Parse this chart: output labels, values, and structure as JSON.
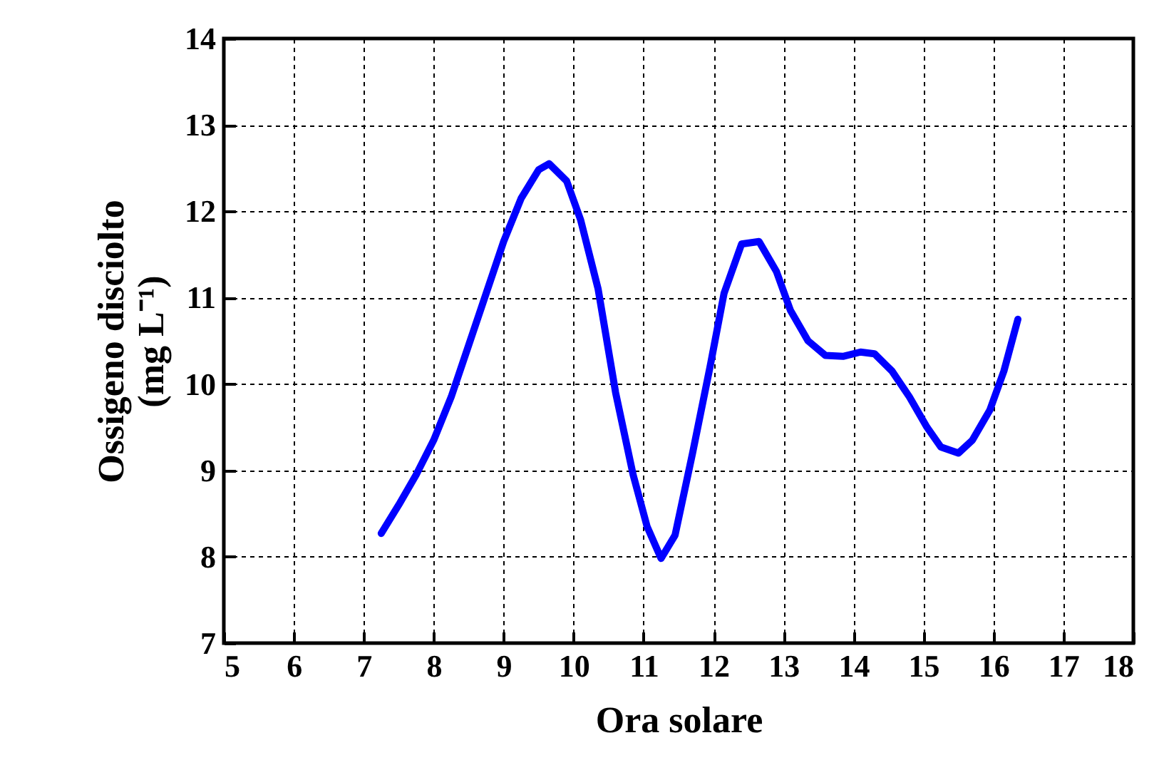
{
  "chart_data": {
    "type": "line",
    "xlabel": "Ora solare",
    "ylabel": [
      "Ossigeno disciolto",
      "(mg  L⁻¹)"
    ],
    "xlim": [
      5,
      18
    ],
    "xticks": [
      5,
      6,
      7,
      8,
      9,
      10,
      11,
      12,
      13,
      14,
      15,
      16,
      17,
      18
    ],
    "ylim": [
      7,
      14
    ],
    "yticks": [
      7,
      8,
      9,
      10,
      11,
      12,
      13,
      14
    ],
    "grid": true,
    "line_style": "solid",
    "series": [
      {
        "color": "#0000ff",
        "x": [
          7.25,
          7.5,
          7.75,
          8.0,
          8.25,
          8.5,
          8.75,
          9.0,
          9.25,
          9.5,
          9.65,
          9.9,
          10.1,
          10.35,
          10.6,
          10.85,
          11.05,
          11.25,
          11.45,
          11.7,
          11.95,
          12.15,
          12.4,
          12.65,
          12.9,
          13.1,
          13.35,
          13.6,
          13.85,
          14.1,
          14.3,
          14.55,
          14.8,
          15.05,
          15.25,
          15.5,
          15.7,
          15.95,
          16.15,
          16.35
        ],
        "values": [
          8.27,
          8.6,
          8.95,
          9.35,
          9.85,
          10.45,
          11.05,
          11.65,
          12.15,
          12.48,
          12.55,
          12.35,
          11.9,
          11.1,
          9.9,
          8.95,
          8.35,
          7.98,
          8.25,
          9.2,
          10.2,
          11.05,
          11.62,
          11.65,
          11.3,
          10.85,
          10.5,
          10.33,
          10.32,
          10.37,
          10.35,
          10.15,
          9.85,
          9.5,
          9.27,
          9.2,
          9.35,
          9.7,
          10.15,
          10.75
        ]
      }
    ]
  }
}
